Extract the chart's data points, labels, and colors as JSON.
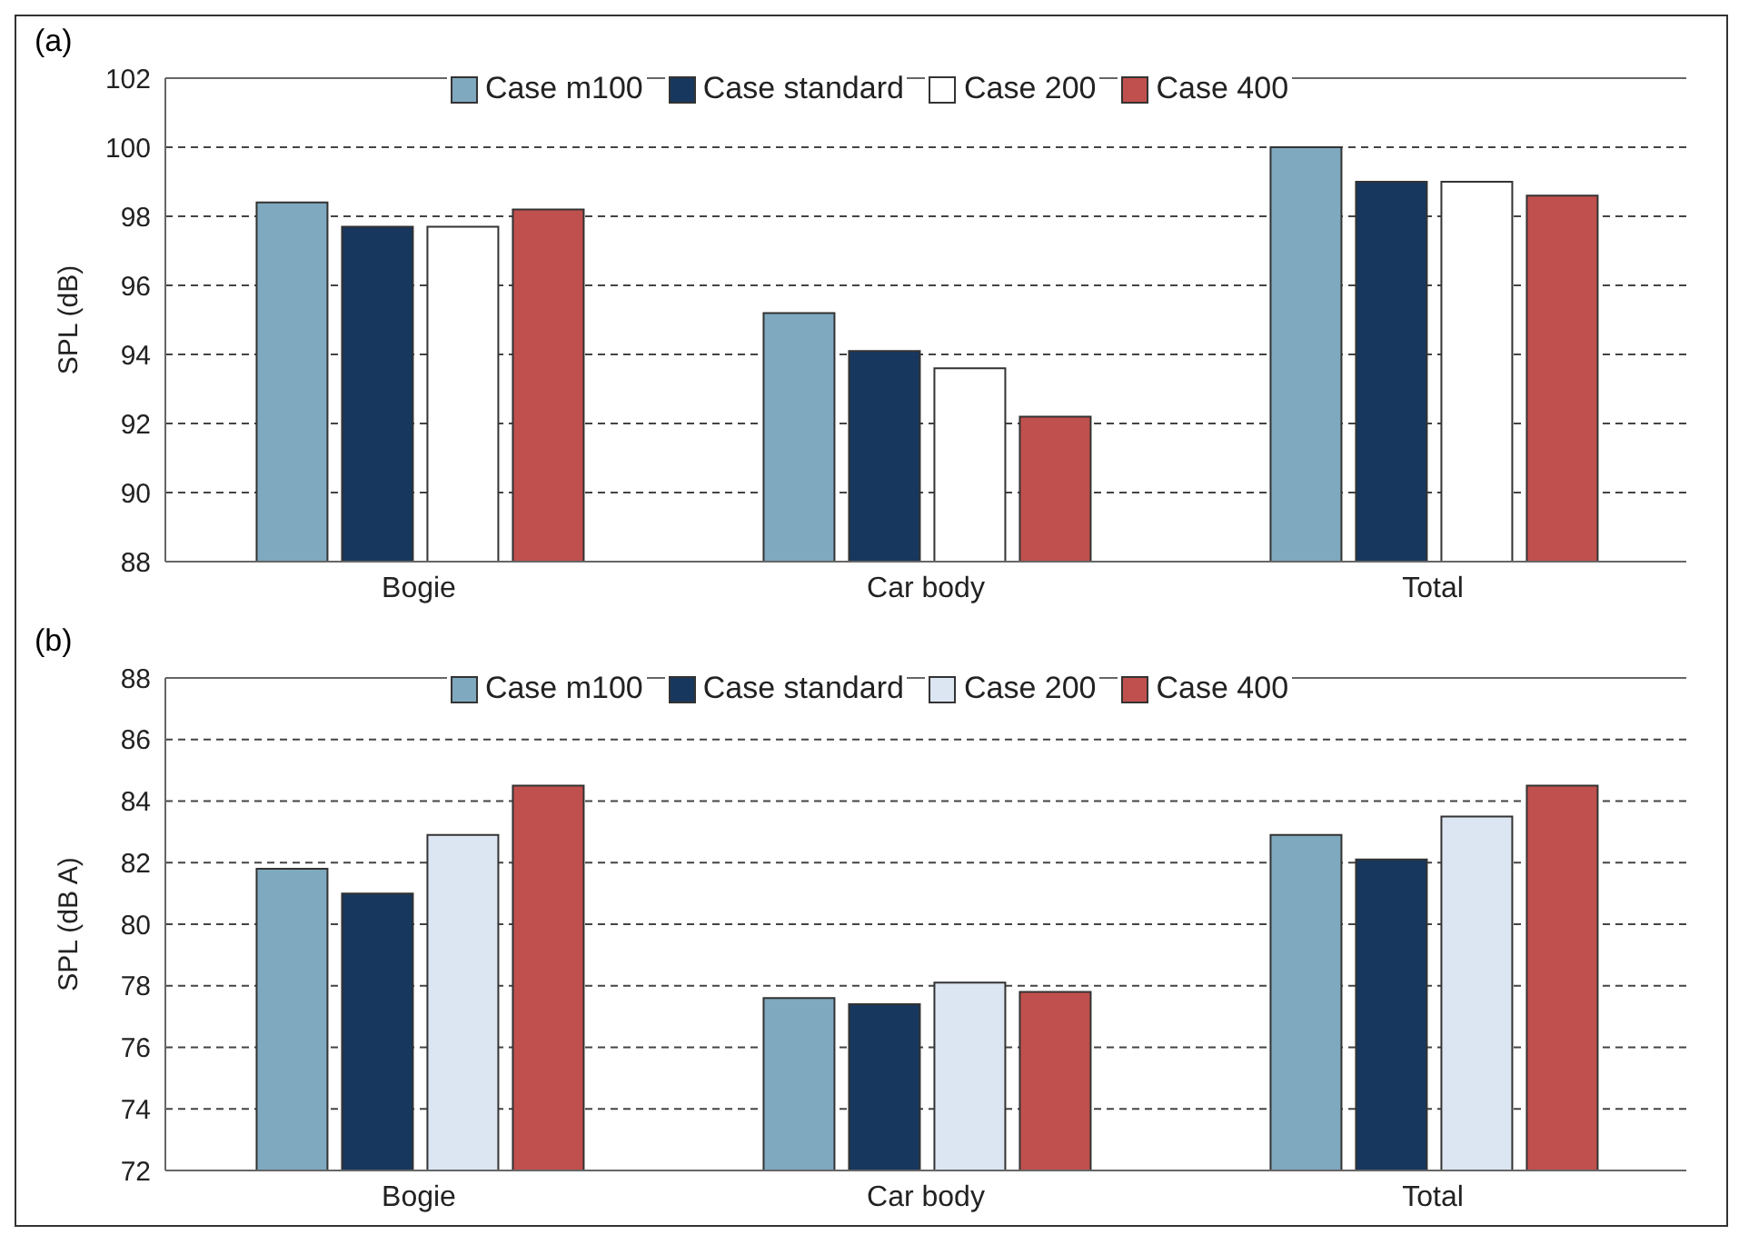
{
  "chart_data": [
    {
      "type": "bar",
      "annotations": [
        "(a)"
      ],
      "ylabel": "SPL (dB)",
      "categories": [
        "Bogie",
        "Car body",
        "Total"
      ],
      "series": [
        {
          "name": "Case m100",
          "color": "#7fa9bf",
          "values": [
            98.4,
            95.2,
            100.0
          ]
        },
        {
          "name": "Case standard",
          "color": "#17375e",
          "values": [
            97.7,
            94.1,
            99.0
          ]
        },
        {
          "name": "Case 200",
          "color": "#ffffff",
          "values": [
            97.7,
            93.6,
            99.0
          ]
        },
        {
          "name": "Case 400",
          "color": "#c0504d",
          "values": [
            98.2,
            92.2,
            98.6
          ]
        }
      ],
      "ylim": [
        88,
        102
      ],
      "yticks": [
        88,
        90,
        92,
        94,
        96,
        98,
        100,
        102
      ],
      "grid": "y",
      "legend": "top"
    },
    {
      "type": "bar",
      "annotations": [
        "(b)"
      ],
      "ylabel": "SPL (dB A)",
      "categories": [
        "Bogie",
        "Car body",
        "Total"
      ],
      "series": [
        {
          "name": "Case m100",
          "color": "#7fa9bf",
          "values": [
            81.8,
            77.6,
            82.9
          ]
        },
        {
          "name": "Case standard",
          "color": "#17375e",
          "values": [
            81.0,
            77.4,
            82.1
          ]
        },
        {
          "name": "Case 200",
          "color": "#dce6f2",
          "values": [
            82.9,
            78.1,
            83.5
          ]
        },
        {
          "name": "Case 400",
          "color": "#c0504d",
          "values": [
            84.5,
            77.8,
            84.5
          ]
        }
      ],
      "ylim": [
        72,
        88
      ],
      "yticks": [
        72,
        74,
        76,
        78,
        80,
        82,
        84,
        86,
        88
      ],
      "grid": "y",
      "legend": "top"
    }
  ]
}
